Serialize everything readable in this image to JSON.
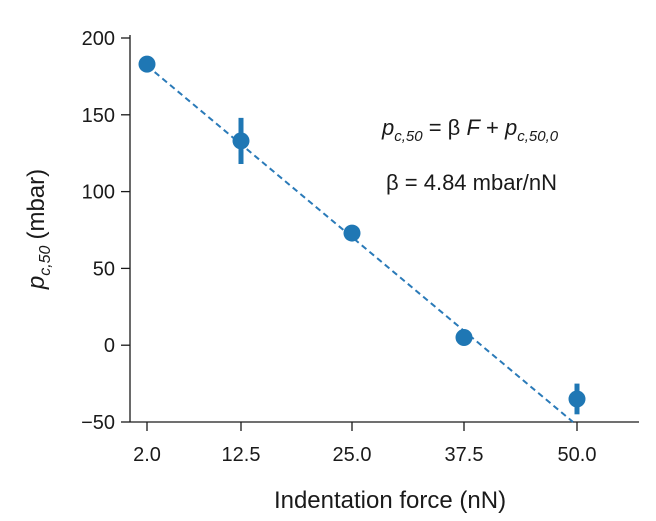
{
  "chart_data": {
    "type": "scatter",
    "xlabel": "Indentation force (nN)",
    "ylabel_main": "p",
    "ylabel_sub": "c,50",
    "ylabel_unit": "(mbar)",
    "x_ticks": [
      "2.0",
      "12.5",
      "25.0",
      "37.5",
      "50.0"
    ],
    "y_ticks": [
      "200",
      "150",
      "100",
      "50",
      "0",
      "−50"
    ],
    "ylim": [
      -50,
      200
    ],
    "grid": false,
    "points": [
      {
        "x": "2.0",
        "y": 183,
        "err": 5
      },
      {
        "x": "12.5",
        "y": 133,
        "err": 15
      },
      {
        "x": "25.0",
        "y": 73,
        "err": 3
      },
      {
        "x": "37.5",
        "y": 5,
        "err": 3
      },
      {
        "x": "50.0",
        "y": -35,
        "err": 10
      }
    ],
    "fit": {
      "y_start": 182,
      "y_end": -50
    },
    "annotation": {
      "eq_main": "p",
      "eq_sub": "c,50",
      "eq_mid": " = β ",
      "eq_F": "F",
      "eq_plus": " + ",
      "eq_main2": "p",
      "eq_sub2": "c,50,0",
      "beta_text": "β = 4.84 mbar/nN"
    },
    "colors": {
      "marker": "#1f77b4",
      "fit": "#2a7ab8",
      "axis": "#1a1a1a"
    }
  }
}
